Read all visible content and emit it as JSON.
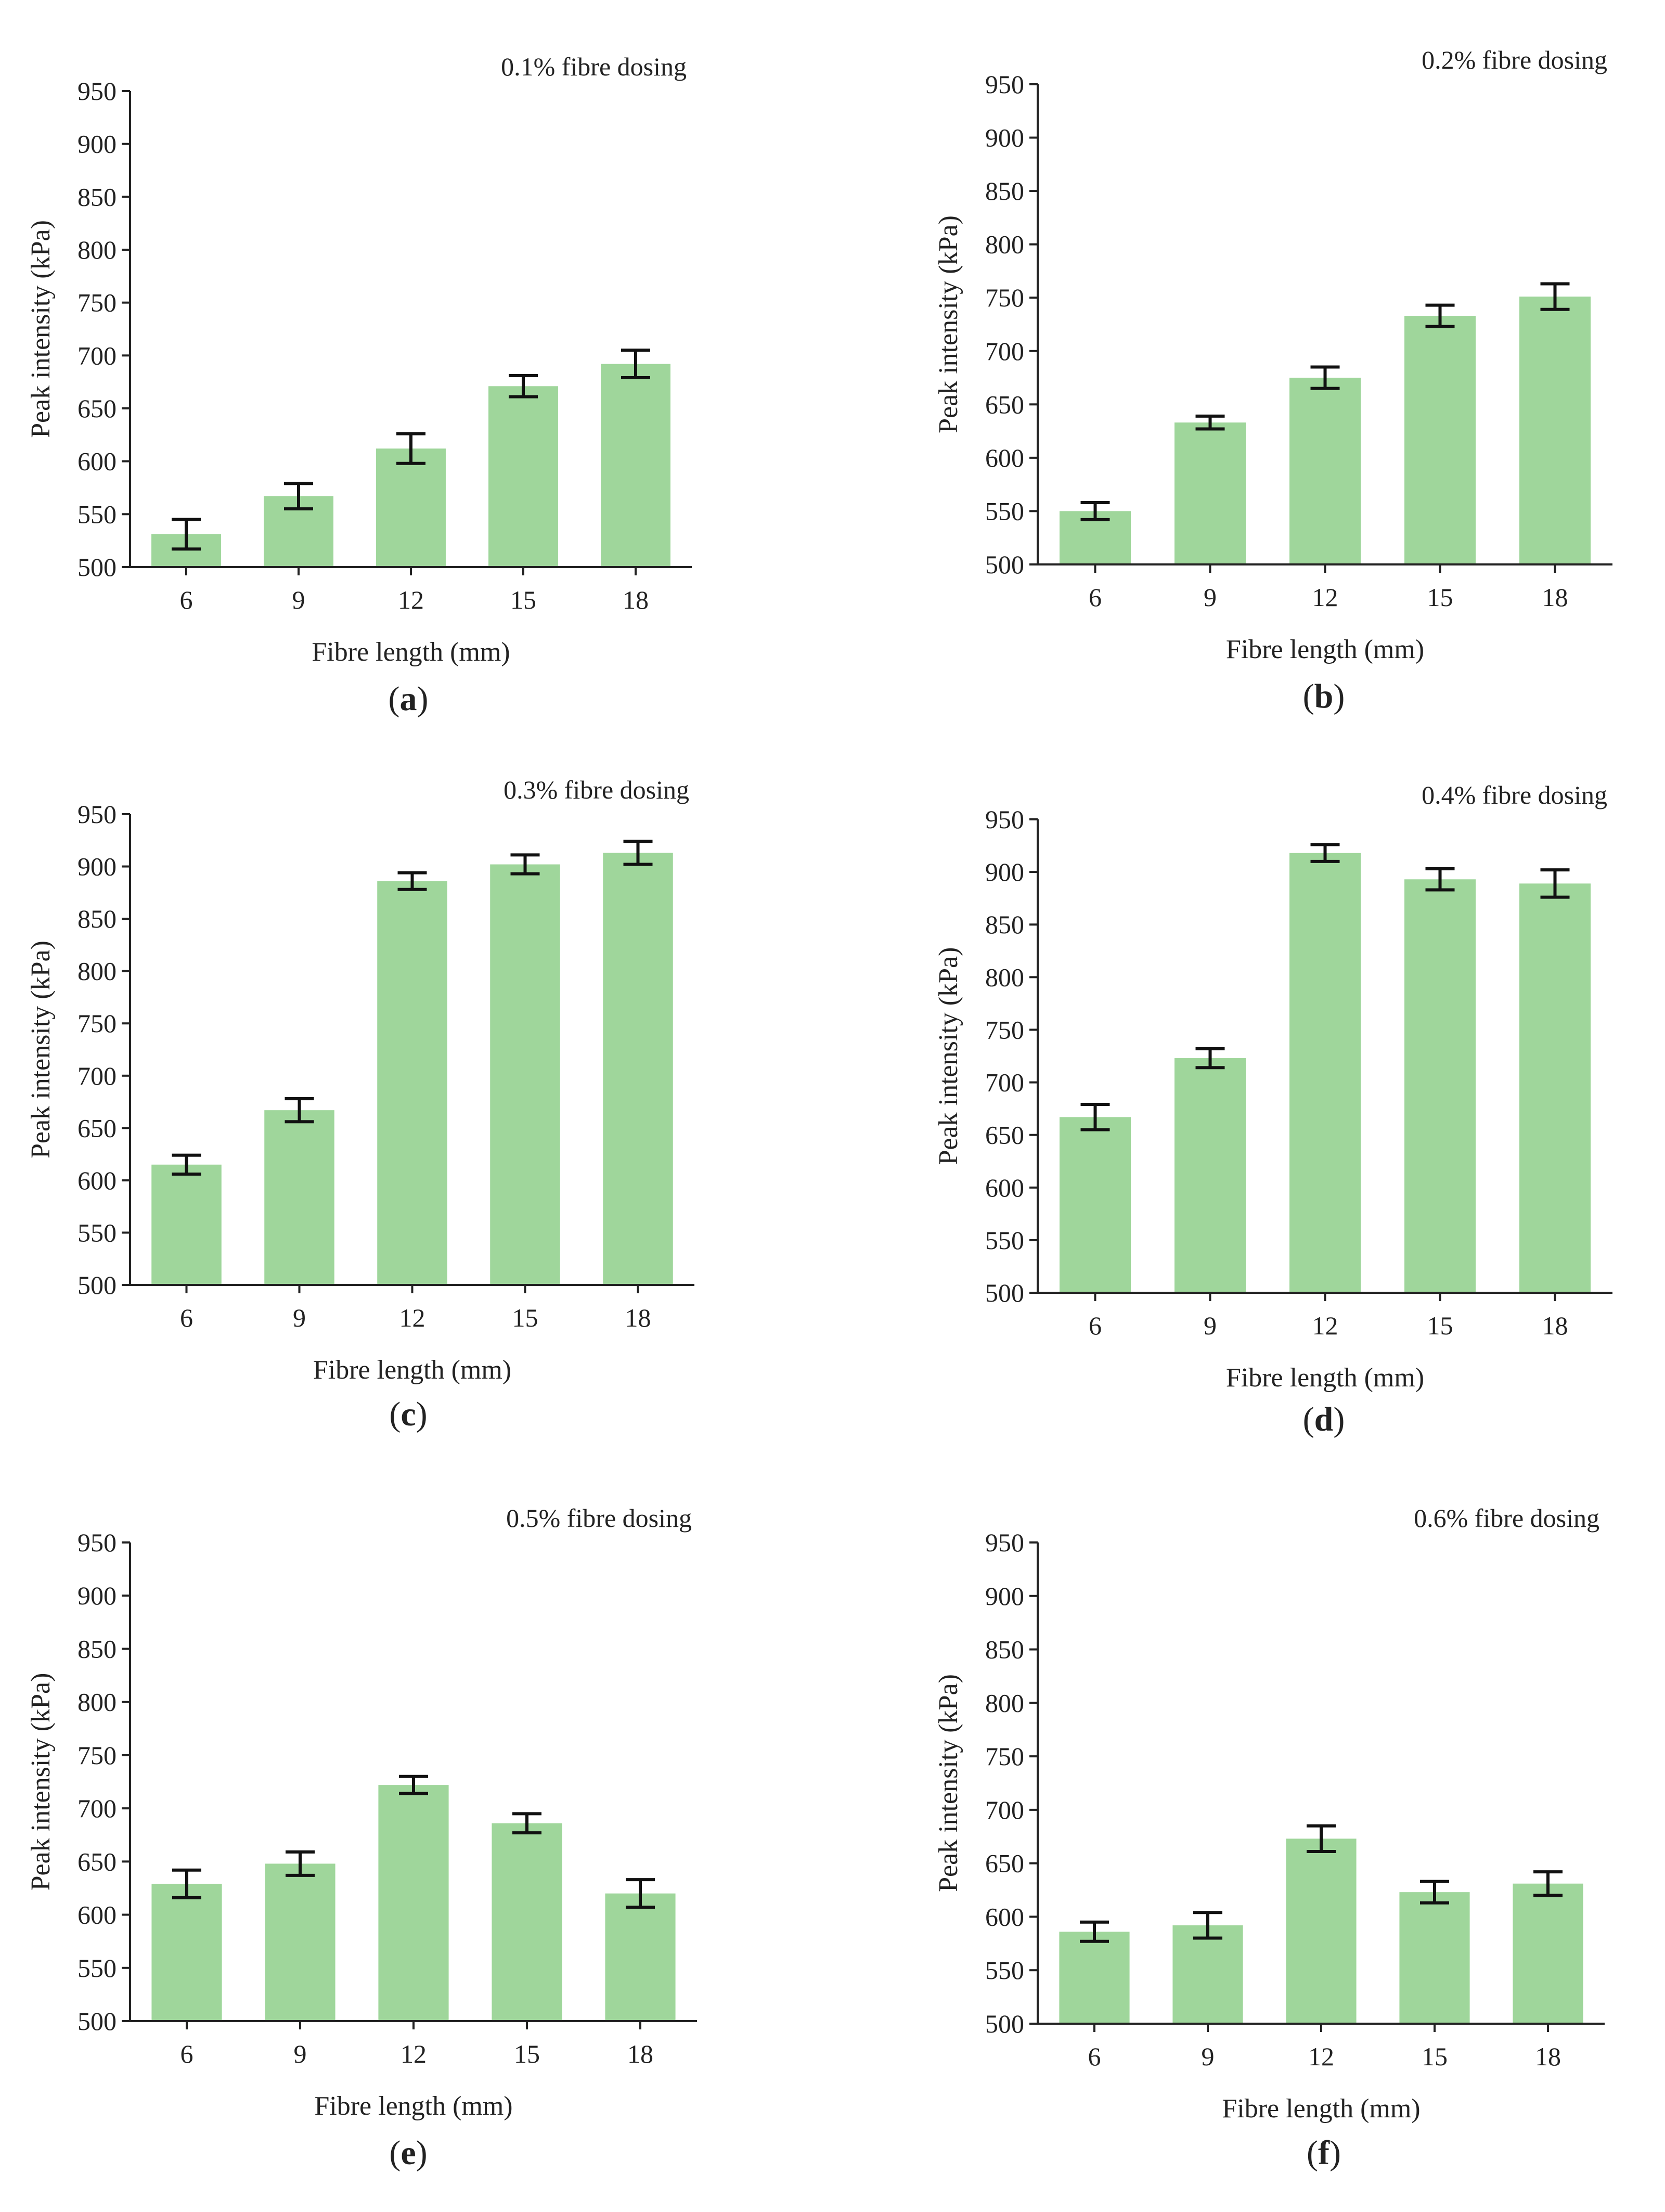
{
  "colors": {
    "bar_fill": "#9fd69b",
    "axis": "#222222",
    "error_bar": "#111111",
    "background": "#ffffff"
  },
  "chart_data": [
    {
      "type": "bar",
      "panel": "a",
      "title": "0.1% fibre dosing",
      "xlabel": "Fibre length (mm)",
      "ylabel": "Peak intensity (kPa)",
      "categories": [
        "6",
        "9",
        "12",
        "15",
        "18"
      ],
      "values": [
        531,
        567,
        612,
        671,
        692
      ],
      "errors": [
        14,
        12,
        14,
        10,
        13
      ],
      "ylim": [
        500,
        950
      ],
      "yticks": [
        500,
        550,
        600,
        650,
        700,
        750,
        800,
        850,
        900,
        950
      ],
      "caption": {
        "open": "(",
        "letter": "a",
        "close": ")"
      }
    },
    {
      "type": "bar",
      "panel": "b",
      "title": "0.2% fibre dosing",
      "xlabel": "Fibre length (mm)",
      "ylabel": "Peak intensity (kPa)",
      "categories": [
        "6",
        "9",
        "12",
        "15",
        "18"
      ],
      "values": [
        550,
        633,
        675,
        733,
        751
      ],
      "errors": [
        8,
        6,
        10,
        10,
        12
      ],
      "ylim": [
        500,
        950
      ],
      "yticks": [
        500,
        550,
        600,
        650,
        700,
        750,
        800,
        850,
        900,
        950
      ],
      "caption": {
        "open": "(",
        "letter": "b",
        "close": ")"
      }
    },
    {
      "type": "bar",
      "panel": "c",
      "title": "0.3% fibre dosing",
      "xlabel": "Fibre length (mm)",
      "ylabel": "Peak intensity (kPa)",
      "categories": [
        "6",
        "9",
        "12",
        "15",
        "18"
      ],
      "values": [
        615,
        667,
        886,
        902,
        913
      ],
      "errors": [
        9,
        11,
        8,
        9,
        11
      ],
      "ylim": [
        500,
        950
      ],
      "yticks": [
        500,
        550,
        600,
        650,
        700,
        750,
        800,
        850,
        900,
        950
      ],
      "caption": {
        "open": "(",
        "letter": "c",
        "close": ")"
      }
    },
    {
      "type": "bar",
      "panel": "d",
      "title": "0.4% fibre dosing",
      "xlabel": "Fibre length (mm)",
      "ylabel": "Peak intensity (kPa)",
      "categories": [
        "6",
        "9",
        "12",
        "15",
        "18"
      ],
      "values": [
        667,
        723,
        918,
        893,
        889
      ],
      "errors": [
        12,
        9,
        8,
        10,
        13
      ],
      "ylim": [
        500,
        950
      ],
      "yticks": [
        500,
        550,
        600,
        650,
        700,
        750,
        800,
        850,
        900,
        950
      ],
      "caption": {
        "open": "(",
        "letter": "d",
        "close": ")"
      }
    },
    {
      "type": "bar",
      "panel": "e",
      "title": "0.5% fibre dosing",
      "xlabel": "Fibre length (mm)",
      "ylabel": "Peak intensity (kPa)",
      "categories": [
        "6",
        "9",
        "12",
        "15",
        "18"
      ],
      "values": [
        629,
        648,
        722,
        686,
        620
      ],
      "errors": [
        13,
        11,
        8,
        9,
        13
      ],
      "ylim": [
        500,
        950
      ],
      "yticks": [
        500,
        550,
        600,
        650,
        700,
        750,
        800,
        850,
        900,
        950
      ],
      "caption": {
        "open": "(",
        "letter": "e",
        "close": ")"
      }
    },
    {
      "type": "bar",
      "panel": "f",
      "title": "0.6% fibre dosing",
      "xlabel": "Fibre length (mm)",
      "ylabel": "Peak intensity (kPa)",
      "categories": [
        "6",
        "9",
        "12",
        "15",
        "18"
      ],
      "values": [
        586,
        592,
        673,
        623,
        631
      ],
      "errors": [
        9,
        12,
        12,
        10,
        11
      ],
      "ylim": [
        500,
        950
      ],
      "yticks": [
        500,
        550,
        600,
        650,
        700,
        750,
        800,
        850,
        900,
        950
      ],
      "caption": {
        "open": "(",
        "letter": "f",
        "close": ")"
      }
    }
  ]
}
